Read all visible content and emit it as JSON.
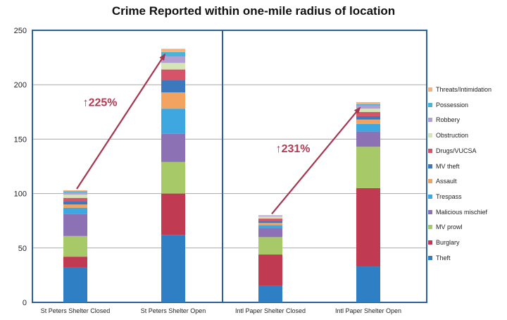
{
  "chart_data": {
    "type": "bar",
    "stacked": true,
    "title": "Crime Reported within one-mile radius of location",
    "categories": [
      "St Peters Shelter Closed",
      "St Peters Shelter Open",
      "Intl Paper Shelter Closed",
      "Intl Paper Shelter Open"
    ],
    "ylim": [
      0,
      250
    ],
    "yticks": [
      0,
      50,
      100,
      150,
      200,
      250
    ],
    "grid": true,
    "legend_position": "right",
    "series": [
      {
        "name": "Theft",
        "color": "#2e7fc4",
        "values": [
          32,
          62,
          15,
          33
        ]
      },
      {
        "name": "Burglary",
        "color": "#c03a52",
        "values": [
          10,
          38,
          29,
          72
        ]
      },
      {
        "name": "MV prowl",
        "color": "#a7c968",
        "values": [
          19,
          29,
          16,
          38
        ]
      },
      {
        "name": "Malicious mischief",
        "color": "#8d71b5",
        "values": [
          20,
          26,
          8,
          14
        ]
      },
      {
        "name": "Trespass",
        "color": "#3fa7df",
        "values": [
          6,
          23,
          3,
          7
        ]
      },
      {
        "name": "Assault",
        "color": "#f2a360",
        "values": [
          3,
          15,
          2,
          4
        ]
      },
      {
        "name": "MV theft",
        "color": "#3c78bd",
        "values": [
          3,
          11,
          2,
          3
        ]
      },
      {
        "name": "Drugs/VUCSA",
        "color": "#d65468",
        "values": [
          3,
          10,
          2,
          4
        ]
      },
      {
        "name": "Obstruction",
        "color": "#d5e5b6",
        "values": [
          3,
          6,
          2,
          3
        ]
      },
      {
        "name": "Robbery",
        "color": "#b39fd1",
        "values": [
          2,
          6,
          1,
          3
        ]
      },
      {
        "name": "Possession",
        "color": "#4cb3d8",
        "values": [
          1,
          4,
          0,
          1
        ]
      },
      {
        "name": "Threats/Intimidation",
        "color": "#f5b27a",
        "values": [
          1,
          3,
          0,
          2
        ]
      }
    ],
    "annotations": [
      {
        "text": "↑225%",
        "from_category": 0,
        "to_category": 1
      },
      {
        "text": "↑231%",
        "from_category": 2,
        "to_category": 3
      }
    ]
  }
}
